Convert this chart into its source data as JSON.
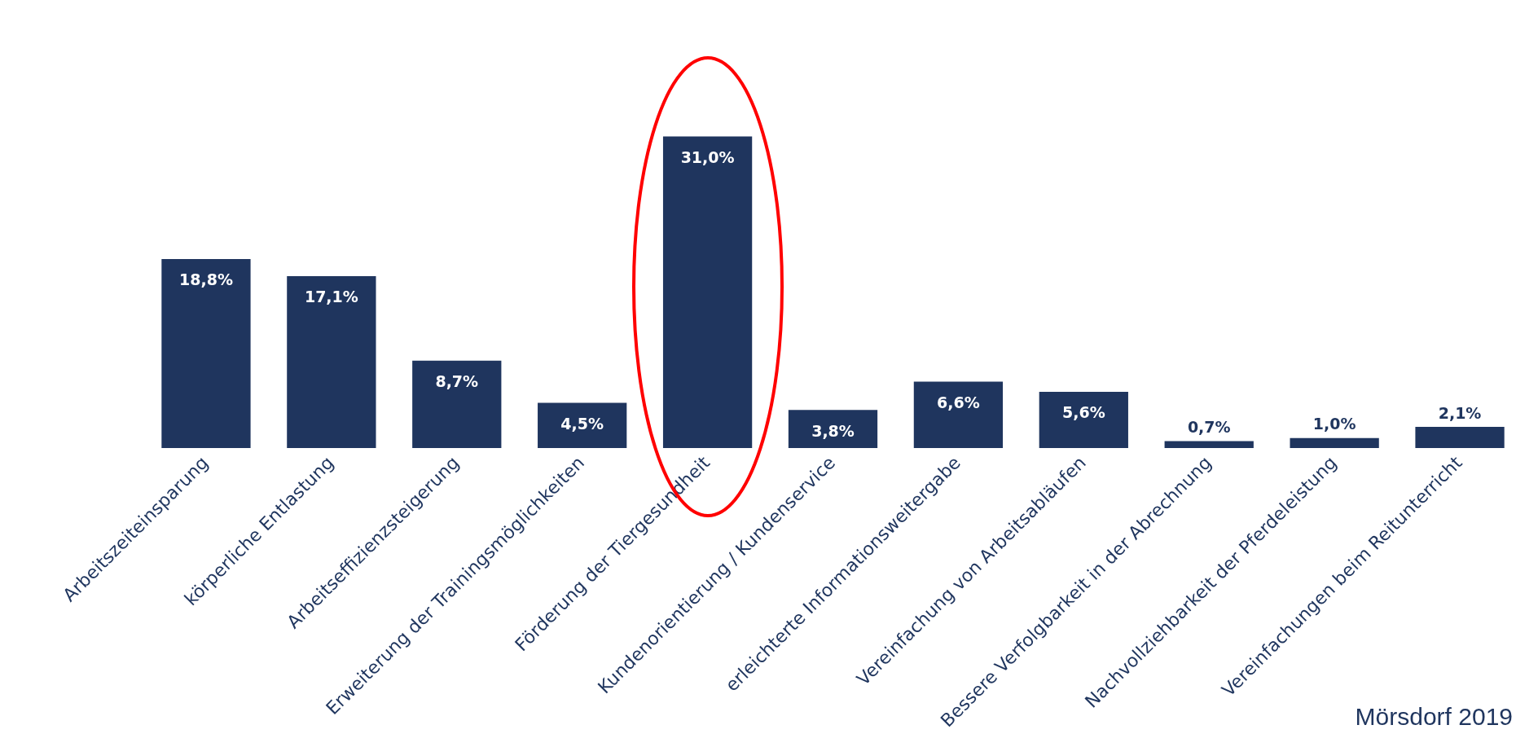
{
  "chart_data": {
    "type": "bar",
    "relative": false,
    "categories": [
      "Arbeitszeiteinsparung",
      "körperliche Entlastung",
      "Arbeitseffizienzsteigerung",
      "Erweiterung der Trainingsmöglichkeiten",
      "Förderung der Tiergesundheit",
      "Kundenorientierung / Kundenservice",
      "erleichterte Informationsweitergabe",
      "Vereinfachung von Arbeitsabläufen",
      "Bessere Verfolgbarkeit in der Abrechnung",
      "Nachvollziehbarkeit der Pferdeleistung",
      "Vereinfachungen beim Reitunterricht"
    ],
    "values": [
      18.8,
      17.1,
      8.7,
      4.5,
      31.0,
      3.8,
      6.6,
      5.6,
      0.7,
      1.0,
      2.1
    ],
    "value_labels": [
      "18,8%",
      "17,1%",
      "8,7%",
      "4,5%",
      "31,0%",
      "3,8%",
      "6,6%",
      "5,6%",
      "0,7%",
      "1,0%",
      "2,1%"
    ],
    "color": "#1f355e",
    "annotations": [
      "Mörsdorf 2019"
    ],
    "grid": false,
    "legend": false
  }
}
